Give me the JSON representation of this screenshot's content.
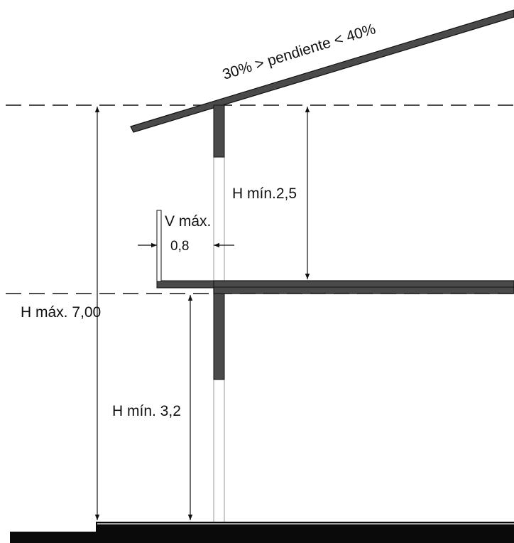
{
  "diagram": {
    "slope_label": "30% > pendiente < 40%",
    "upper_height_label": "H mín.2,5",
    "balcony_label_line1": "V máx.",
    "balcony_label_line2": "0,8",
    "total_height_label": "H máx. 7,00",
    "lower_height_label": "H mín. 3,2"
  },
  "colors": {
    "structure": "#4a4a4a",
    "ground": "#0a0a0a",
    "line": "#111111",
    "background": "#ffffff"
  }
}
